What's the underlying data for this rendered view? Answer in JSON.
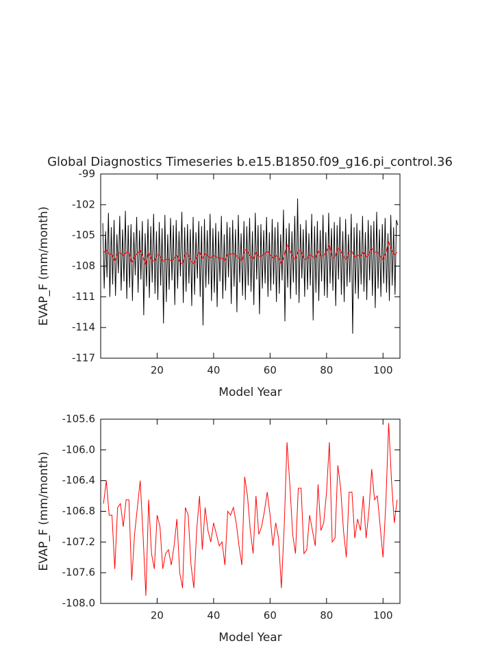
{
  "chart_data": [
    {
      "type": "line",
      "title": "Global Diagnostics Timeseries b.e15.B1850.f09_g16.pi_control.36",
      "xlabel": "Model Year",
      "ylabel": "EVAP_F (mm/month)",
      "xlim": [
        0,
        106
      ],
      "xticks": [
        20,
        40,
        60,
        80,
        100
      ],
      "ylim": [
        -117,
        -99
      ],
      "yticks": [
        -117,
        -114,
        -111,
        -108,
        -105,
        -102,
        -99
      ],
      "series": [
        {
          "color": "#000000",
          "x": [
            0.75,
            1.25,
            1.75,
            2.25,
            2.75,
            3.25,
            3.75,
            4.25,
            4.75,
            5.25,
            5.75,
            6.25,
            6.75,
            7.25,
            7.75,
            8.25,
            8.75,
            9.25,
            9.75,
            10.25,
            10.75,
            11.25,
            11.75,
            12.25,
            12.75,
            13.25,
            13.75,
            14.25,
            14.75,
            15.25,
            15.75,
            16.25,
            16.75,
            17.25,
            17.75,
            18.25,
            18.75,
            19.25,
            19.75,
            20.25,
            20.75,
            21.25,
            21.75,
            22.25,
            22.75,
            23.25,
            23.75,
            24.25,
            24.75,
            25.25,
            25.75,
            26.25,
            26.75,
            27.25,
            27.75,
            28.25,
            28.75,
            29.25,
            29.75,
            30.25,
            30.75,
            31.25,
            31.75,
            32.25,
            32.75,
            33.25,
            33.75,
            34.25,
            34.75,
            35.25,
            35.75,
            36.25,
            36.75,
            37.25,
            37.75,
            38.25,
            38.75,
            39.25,
            39.75,
            40.25,
            40.75,
            41.25,
            41.75,
            42.25,
            42.75,
            43.25,
            43.75,
            44.25,
            44.75,
            45.25,
            45.75,
            46.25,
            46.75,
            47.25,
            47.75,
            48.25,
            48.75,
            49.25,
            49.75,
            50.25,
            50.75,
            51.25,
            51.75,
            52.25,
            52.75,
            53.25,
            53.75,
            54.25,
            54.75,
            55.25,
            55.75,
            56.25,
            56.75,
            57.25,
            57.75,
            58.25,
            58.75,
            59.25,
            59.75,
            60.25,
            60.75,
            61.25,
            61.75,
            62.25,
            62.75,
            63.25,
            63.75,
            64.25,
            64.75,
            65.25,
            65.75,
            66.25,
            66.75,
            67.25,
            67.75,
            68.25,
            68.75,
            69.25,
            69.75,
            70.25,
            70.75,
            71.25,
            71.75,
            72.25,
            72.75,
            73.25,
            73.75,
            74.25,
            74.75,
            75.25,
            75.75,
            76.25,
            76.75,
            77.25,
            77.75,
            78.25,
            78.75,
            79.25,
            79.75,
            80.25,
            80.75,
            81.25,
            81.75,
            82.25,
            82.75,
            83.25,
            83.75,
            84.25,
            84.75,
            85.25,
            85.75,
            86.25,
            86.75,
            87.25,
            87.75,
            88.25,
            88.75,
            89.25,
            89.75,
            90.25,
            90.75,
            91.25,
            91.75,
            92.25,
            92.75,
            93.25,
            93.75,
            94.25,
            94.75,
            95.25,
            95.75,
            96.25,
            96.75,
            97.25,
            97.75,
            98.25,
            98.75,
            99.25,
            99.75,
            100.25,
            100.75,
            101.25,
            101.75,
            102.25,
            102.75,
            103.25,
            103.75,
            104.25,
            104.75,
            105.25
          ],
          "values": [
            -103.8,
            -110.2,
            -104.6,
            -109.1,
            -102.8,
            -111.0,
            -104.2,
            -109.8,
            -103.5,
            -110.9,
            -104.9,
            -108.7,
            -103.1,
            -110.4,
            -104.4,
            -109.5,
            -102.6,
            -111.2,
            -104.0,
            -110.1,
            -103.9,
            -111.4,
            -104.7,
            -108.9,
            -103.2,
            -110.6,
            -104.5,
            -109.3,
            -103.6,
            -112.8,
            -104.8,
            -110.0,
            -103.4,
            -111.1,
            -104.1,
            -109.6,
            -102.9,
            -110.7,
            -104.6,
            -111.3,
            -103.7,
            -109.9,
            -104.3,
            -113.6,
            -103.0,
            -111.5,
            -104.9,
            -110.3,
            -103.3,
            -109.4,
            -104.0,
            -111.8,
            -103.5,
            -110.2,
            -104.6,
            -109.0,
            -102.7,
            -111.6,
            -104.2,
            -110.5,
            -103.9,
            -109.7,
            -104.4,
            -111.9,
            -103.2,
            -110.8,
            -104.7,
            -109.2,
            -103.6,
            -111.0,
            -104.1,
            -113.8,
            -103.4,
            -110.1,
            -104.5,
            -109.8,
            -102.9,
            -111.4,
            -104.3,
            -110.6,
            -103.8,
            -112.0,
            -104.6,
            -109.5,
            -103.1,
            -111.2,
            -104.9,
            -110.4,
            -103.7,
            -109.1,
            -104.2,
            -111.7,
            -103.5,
            -110.0,
            -104.4,
            -112.5,
            -103.0,
            -109.6,
            -104.8,
            -110.9,
            -103.6,
            -111.3,
            -104.1,
            -109.9,
            -103.3,
            -110.5,
            -104.6,
            -111.8,
            -102.8,
            -109.3,
            -104.0,
            -112.7,
            -103.9,
            -110.2,
            -104.5,
            -109.7,
            -103.2,
            -111.0,
            -104.7,
            -110.4,
            -103.4,
            -109.8,
            -104.2,
            -111.5,
            -103.7,
            -110.7,
            -104.9,
            -109.4,
            -102.5,
            -113.4,
            -104.3,
            -110.1,
            -103.8,
            -111.2,
            -104.6,
            -109.6,
            -103.1,
            -110.8,
            -101.4,
            -111.6,
            -103.9,
            -109.2,
            -104.4,
            -111.0,
            -103.5,
            -110.3,
            -104.8,
            -109.9,
            -102.9,
            -113.3,
            -104.1,
            -110.6,
            -103.6,
            -111.4,
            -104.5,
            -109.5,
            -103.0,
            -110.9,
            -104.7,
            -111.1,
            -102.8,
            -109.7,
            -104.3,
            -110.4,
            -103.7,
            -111.9,
            -104.0,
            -109.3,
            -103.2,
            -110.8,
            -104.6,
            -111.5,
            -103.4,
            -110.0,
            -104.9,
            -109.6,
            -102.9,
            -114.6,
            -104.2,
            -110.7,
            -103.8,
            -111.2,
            -104.5,
            -109.8,
            -103.1,
            -110.5,
            -104.7,
            -111.3,
            -103.5,
            -109.4,
            -104.0,
            -110.9,
            -103.6,
            -112.1,
            -102.7,
            -110.2,
            -104.4,
            -111.0,
            -103.9,
            -109.7,
            -103.3,
            -110.6,
            -104.8,
            -111.4,
            -103.0,
            -109.9,
            -104.2,
            -110.8,
            -103.5,
            -104.0
          ]
        },
        {
          "color": "#ff0000",
          "x": [
            1,
            2,
            3,
            4,
            5,
            6,
            7,
            8,
            9,
            10,
            11,
            12,
            13,
            14,
            15,
            16,
            17,
            18,
            19,
            20,
            21,
            22,
            23,
            24,
            25,
            26,
            27,
            28,
            29,
            30,
            31,
            32,
            33,
            34,
            35,
            36,
            37,
            38,
            39,
            40,
            41,
            42,
            43,
            44,
            45,
            46,
            47,
            48,
            49,
            50,
            51,
            52,
            53,
            54,
            55,
            56,
            57,
            58,
            59,
            60,
            61,
            62,
            63,
            64,
            65,
            66,
            67,
            68,
            69,
            70,
            71,
            72,
            73,
            74,
            75,
            76,
            77,
            78,
            79,
            80,
            81,
            82,
            83,
            84,
            85,
            86,
            87,
            88,
            89,
            90,
            91,
            92,
            93,
            94,
            95,
            96,
            97,
            98,
            99,
            100,
            101,
            102,
            103,
            104,
            105
          ],
          "values": [
            -106.7,
            -106.4,
            -106.85,
            -106.85,
            -107.55,
            -106.75,
            -106.7,
            -107.0,
            -106.65,
            -106.65,
            -107.7,
            -107.1,
            -106.75,
            -106.4,
            -107.1,
            -107.9,
            -106.65,
            -107.35,
            -107.55,
            -106.85,
            -107.0,
            -107.55,
            -107.35,
            -107.3,
            -107.5,
            -107.25,
            -106.9,
            -107.6,
            -107.8,
            -106.75,
            -106.85,
            -107.5,
            -107.8,
            -107.05,
            -106.6,
            -107.3,
            -106.75,
            -107.05,
            -107.2,
            -106.95,
            -107.1,
            -107.25,
            -107.2,
            -107.5,
            -106.8,
            -106.85,
            -106.75,
            -106.95,
            -107.25,
            -107.5,
            -106.35,
            -106.6,
            -107.05,
            -107.35,
            -106.6,
            -107.1,
            -107.0,
            -106.8,
            -106.55,
            -106.85,
            -107.25,
            -106.95,
            -107.15,
            -107.8,
            -107.0,
            -105.9,
            -106.45,
            -107.1,
            -107.35,
            -106.5,
            -106.5,
            -107.35,
            -107.3,
            -106.85,
            -107.05,
            -107.25,
            -106.45,
            -107.05,
            -106.95,
            -106.55,
            -105.9,
            -107.2,
            -107.15,
            -106.2,
            -106.5,
            -107.05,
            -107.4,
            -106.55,
            -106.55,
            -107.15,
            -106.9,
            -107.05,
            -106.6,
            -107.15,
            -106.8,
            -106.25,
            -106.65,
            -106.6,
            -107.0,
            -107.4,
            -106.7,
            -105.65,
            -106.4,
            -106.95,
            -106.65
          ]
        }
      ]
    },
    {
      "type": "line",
      "xlabel": "Model Year",
      "ylabel": "EVAP_F (mm/month)",
      "xlim": [
        0,
        106
      ],
      "xticks": [
        20,
        40,
        60,
        80,
        100
      ],
      "ylim": [
        -108,
        -105.6
      ],
      "yticks": [
        {
          "value": -108,
          "label": "-108.0"
        },
        -107.6,
        -107.2,
        -106.8,
        -106.4,
        {
          "value": -106,
          "label": "-106.0"
        },
        -105.6
      ],
      "series": [
        {
          "color": "#ff0000",
          "x": [
            1,
            2,
            3,
            4,
            5,
            6,
            7,
            8,
            9,
            10,
            11,
            12,
            13,
            14,
            15,
            16,
            17,
            18,
            19,
            20,
            21,
            22,
            23,
            24,
            25,
            26,
            27,
            28,
            29,
            30,
            31,
            32,
            33,
            34,
            35,
            36,
            37,
            38,
            39,
            40,
            41,
            42,
            43,
            44,
            45,
            46,
            47,
            48,
            49,
            50,
            51,
            52,
            53,
            54,
            55,
            56,
            57,
            58,
            59,
            60,
            61,
            62,
            63,
            64,
            65,
            66,
            67,
            68,
            69,
            70,
            71,
            72,
            73,
            74,
            75,
            76,
            77,
            78,
            79,
            80,
            81,
            82,
            83,
            84,
            85,
            86,
            87,
            88,
            89,
            90,
            91,
            92,
            93,
            94,
            95,
            96,
            97,
            98,
            99,
            100,
            101,
            102,
            103,
            104,
            105
          ],
          "values": [
            -106.7,
            -106.4,
            -106.85,
            -106.85,
            -107.55,
            -106.75,
            -106.7,
            -107.0,
            -106.65,
            -106.65,
            -107.7,
            -107.1,
            -106.75,
            -106.4,
            -107.1,
            -107.9,
            -106.65,
            -107.35,
            -107.55,
            -106.85,
            -107.0,
            -107.55,
            -107.35,
            -107.3,
            -107.5,
            -107.25,
            -106.9,
            -107.6,
            -107.8,
            -106.75,
            -106.85,
            -107.5,
            -107.8,
            -107.05,
            -106.6,
            -107.3,
            -106.75,
            -107.05,
            -107.2,
            -106.95,
            -107.1,
            -107.25,
            -107.2,
            -107.5,
            -106.8,
            -106.85,
            -106.75,
            -106.95,
            -107.25,
            -107.5,
            -106.35,
            -106.6,
            -107.05,
            -107.35,
            -106.6,
            -107.1,
            -107.0,
            -106.8,
            -106.55,
            -106.85,
            -107.25,
            -106.95,
            -107.15,
            -107.8,
            -107.0,
            -105.9,
            -106.45,
            -107.1,
            -107.35,
            -106.5,
            -106.5,
            -107.35,
            -107.3,
            -106.85,
            -107.05,
            -107.25,
            -106.45,
            -107.05,
            -106.95,
            -106.55,
            -105.9,
            -107.2,
            -107.15,
            -106.2,
            -106.5,
            -107.05,
            -107.4,
            -106.55,
            -106.55,
            -107.15,
            -106.9,
            -107.05,
            -106.6,
            -107.15,
            -106.8,
            -106.25,
            -106.65,
            -106.6,
            -107.0,
            -107.4,
            -106.7,
            -105.65,
            -106.4,
            -106.95,
            -106.65
          ]
        }
      ]
    }
  ]
}
